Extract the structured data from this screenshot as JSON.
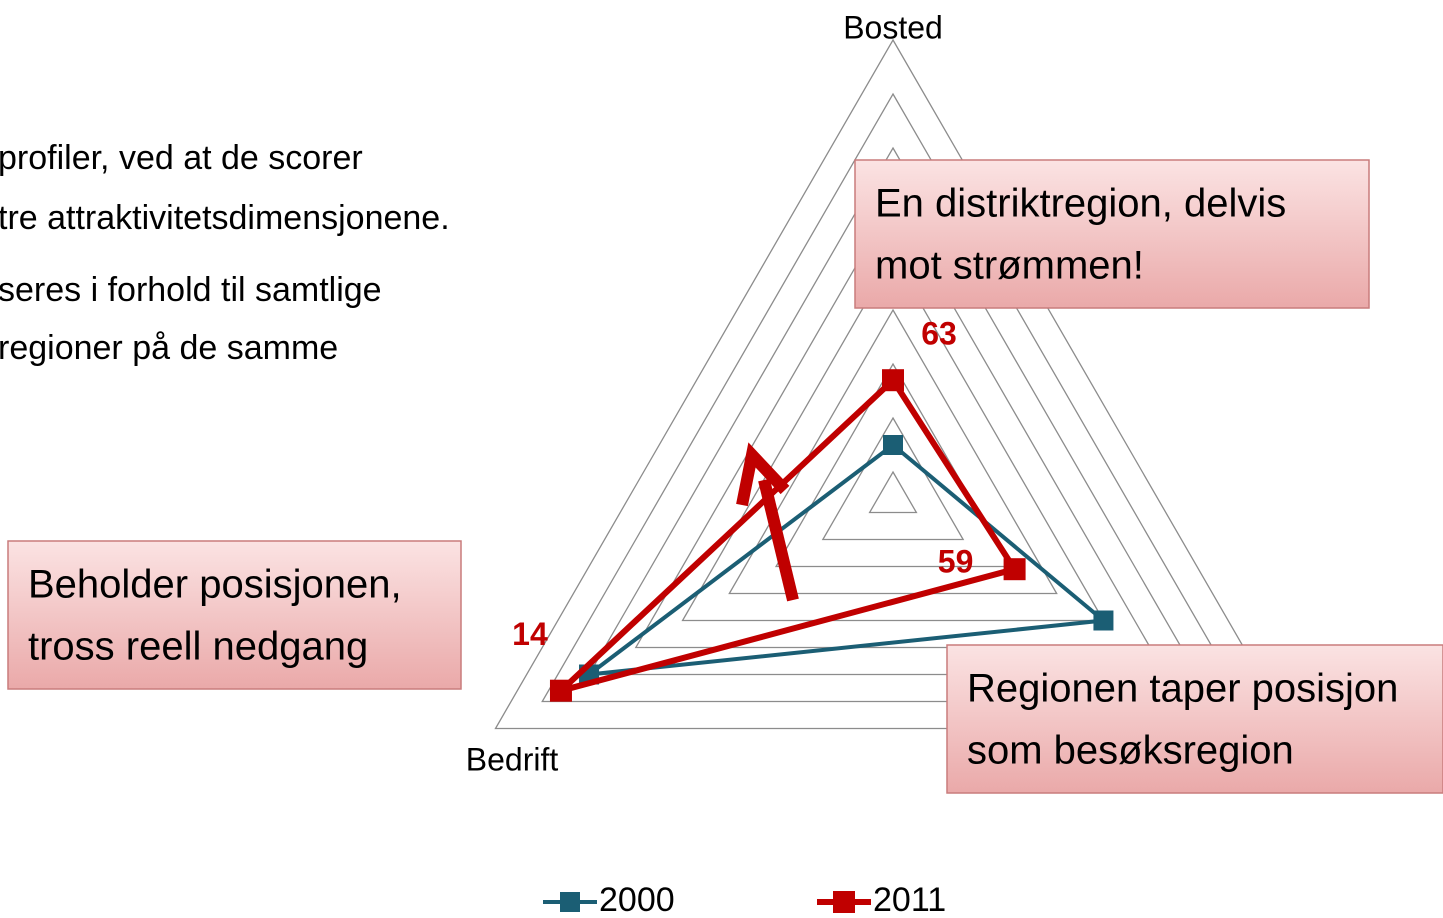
{
  "body_text": [
    "profiler, ved at de scorer",
    "tre attraktivitetsdimensjonene.",
    "seres i forhold til samtlige",
    " regioner på de samme"
  ],
  "chart_data": {
    "type": "radar",
    "categories": [
      "Bosted",
      null,
      "Bedrift"
    ],
    "rlim": [
      85,
      0
    ],
    "rticks": [
      0,
      10,
      20,
      30,
      40,
      50,
      60,
      70,
      80
    ],
    "grid": true,
    "series": [
      {
        "name": "2000",
        "color": "#1b5e74",
        "values": [
          75,
          40,
          20
        ]
      },
      {
        "name": "2011",
        "color": "#c00000",
        "values": [
          63,
          59,
          14
        ]
      }
    ],
    "legend": "bottom"
  },
  "callouts": [
    {
      "lines": [
        "En distriktregion, delvis",
        "mot strømmen!"
      ]
    },
    {
      "lines": [
        "Beholder posisjonen,",
        "tross reell nedgang"
      ]
    },
    {
      "lines": [
        "Regionen taper posisjon",
        "som besøksregion"
      ]
    }
  ]
}
